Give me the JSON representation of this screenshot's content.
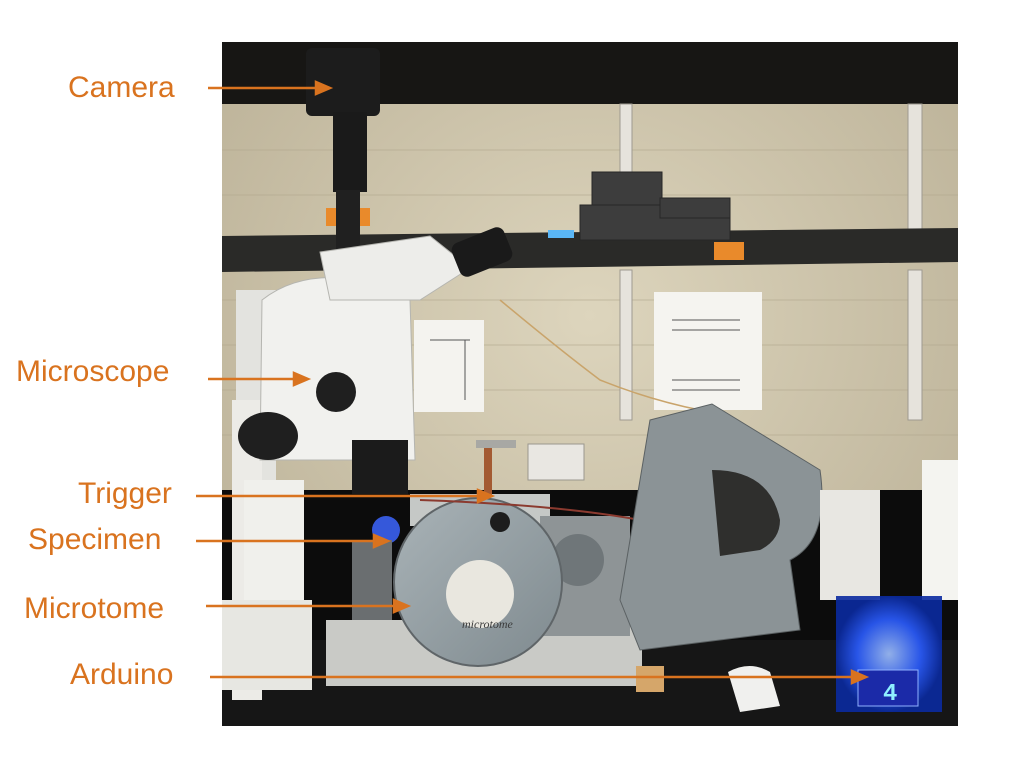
{
  "labels": {
    "camera": "Camera",
    "microscope": "Microscope",
    "trigger": "Trigger",
    "specimen": "Specimen",
    "microtome": "Microtome",
    "arduino": "Arduino"
  },
  "photo": {
    "microtome_brand": "microtome",
    "arduino_display": "4"
  },
  "colors": {
    "label": "#d9731f",
    "arrow": "#d9731f",
    "wall": "#cfc6ae",
    "bench": "#0c0c0c",
    "arduino_glow": "#1f5cff"
  }
}
